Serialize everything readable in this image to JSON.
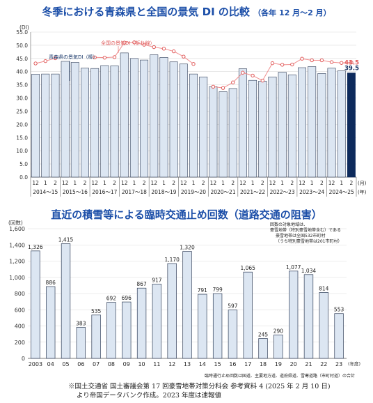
{
  "chart_data": [
    {
      "type": "bar",
      "title": "冬季における青森県と全国の景気 DI の比較",
      "subtitle": "（各年 12 月～2 月）",
      "ylabel": "(DI)",
      "ylim": [
        0,
        55
      ],
      "yticks": [
        "0.0",
        "5.0",
        "10.0",
        "15.0",
        "20.0",
        "25.0",
        "30.0",
        "35.0",
        "40.0",
        "45.0",
        "50.0",
        "55.0"
      ],
      "month_unit": "(月)",
      "year_unit": "(年)",
      "months": [
        "12",
        "1",
        "2",
        "12",
        "1",
        "2",
        "12",
        "1",
        "2",
        "12",
        "1",
        "2",
        "12",
        "1",
        "2",
        "12",
        "1",
        "2",
        "12",
        "1",
        "2",
        "12",
        "1",
        "2",
        "12",
        "1",
        "2",
        "12",
        "1",
        "2",
        "12",
        "1",
        "2"
      ],
      "year_groups": [
        "2014～15",
        "2015～16",
        "2016～17",
        "2017～18",
        "2018～19",
        "2019～20",
        "2020～21",
        "2021～22",
        "2022～23",
        "2023～24",
        "2024～25"
      ],
      "series": [
        {
          "name": "青森県の景気DI（棒）",
          "kind": "bar",
          "color": "#dce6f2",
          "highlight_color": "#0d2a5c",
          "values": [
            39.0,
            39.1,
            39.1,
            43.9,
            43.5,
            41.3,
            41.2,
            42.3,
            42.2,
            47.1,
            45.0,
            44.4,
            46.4,
            45.4,
            43.7,
            42.9,
            39.1,
            38.0,
            34.3,
            32.4,
            33.6,
            41.1,
            36.7,
            36.4,
            38.0,
            39.8,
            38.8,
            41.5,
            41.9,
            39.3,
            41.3,
            40.3,
            39.5
          ]
        },
        {
          "name": "全国の景気DI（折れ線）",
          "kind": "line",
          "color": "#f08c8c",
          "values": [
            43.1,
            44.0,
            45.1,
            null,
            null,
            null,
            45.4,
            45.3,
            45.5,
            51.0,
            51.1,
            50.2,
            49.3,
            48.7,
            47.7,
            45.7,
            42.9,
            null,
            34.3,
            33.8,
            35.9,
            39.6,
            38.5,
            36.6,
            43.2,
            42.6,
            42.7,
            44.9,
            44.3,
            44.3,
            43.6,
            43.3,
            43.5
          ]
        }
      ],
      "data_labels": {
        "bar_last": "39.5",
        "line_last": "43.5"
      }
    },
    {
      "type": "bar",
      "title": "直近の積雪等による臨時交通止め回数（道路交通の阻害）",
      "ylabel": "(回数)",
      "ylim": [
        0,
        1600
      ],
      "yticks": [
        "0",
        "200",
        "400",
        "600",
        "800",
        "1,000",
        "1,200",
        "1,400",
        "1,600"
      ],
      "x_unit": "(年度)",
      "categories": [
        "2003",
        "04",
        "05",
        "06",
        "07",
        "08",
        "09",
        "10",
        "11",
        "12",
        "13",
        "14",
        "15",
        "16",
        "17",
        "18",
        "19",
        "20",
        "21",
        "22",
        "23"
      ],
      "values": [
        1326,
        886,
        1415,
        383,
        535,
        692,
        696,
        867,
        917,
        1170,
        1320,
        791,
        799,
        597,
        1065,
        245,
        290,
        1077,
        1034,
        814,
        553
      ],
      "value_labels": [
        "1,326",
        "886",
        "1,415",
        "383",
        "535",
        "692",
        "696",
        "867",
        "917",
        "1,170",
        "1,320",
        "791",
        "799",
        "597",
        "1,065",
        "245",
        "290",
        "1,077",
        "1,034",
        "814",
        "553"
      ],
      "bar_color": "#dce6f2",
      "annotation_lines": [
        "回数の対象地域は、",
        "豪雪地帯（特別豪雪地帯含む）である",
        "豪雪地帯は全国532市町村",
        "（うち特別豪雪地帯は201市町村）"
      ],
      "footnote": "臨時通行止め回数は国道、主要地方道、道府県道、雪寒道路（市町村道）の合計"
    }
  ],
  "source_lines": [
    "※国土交通省 国土審議会第 17 回豪雪地帯対策分科会 参考資料 4 (2025 年 2 月 10 日)",
    "より帝国データバンク作成。2023 年度は速報値"
  ]
}
